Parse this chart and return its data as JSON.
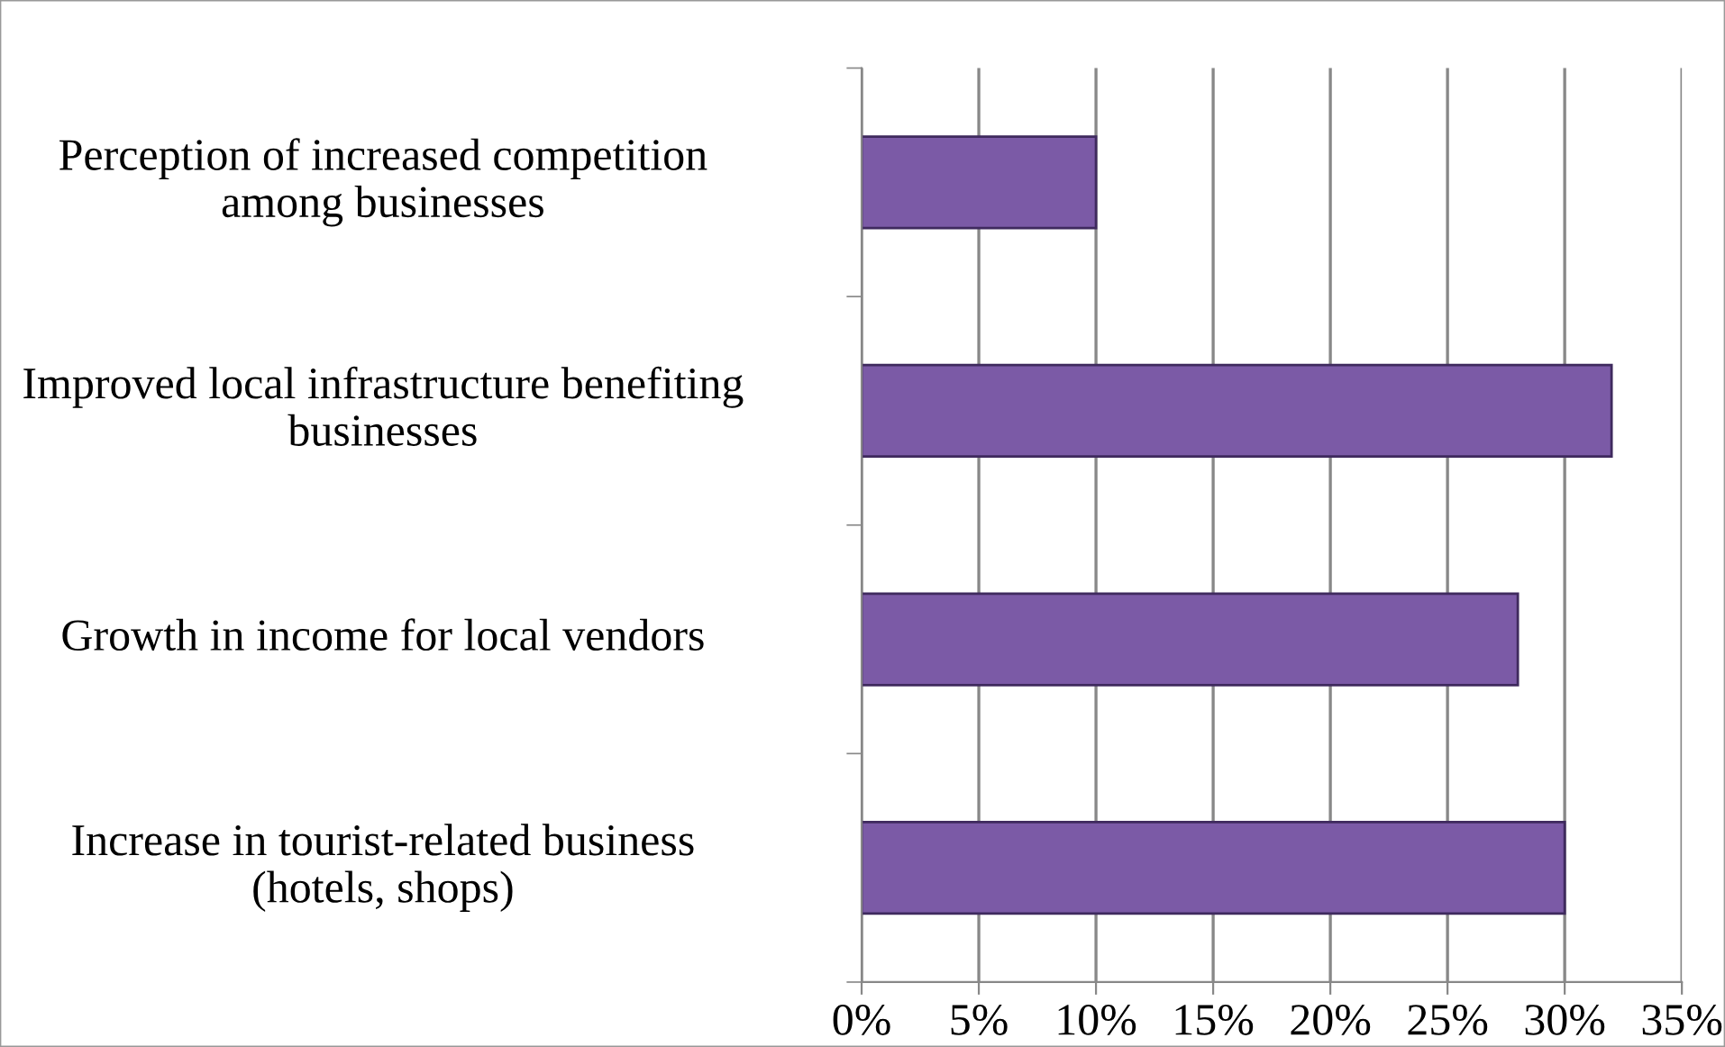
{
  "chart_data": {
    "type": "bar",
    "orientation": "horizontal",
    "categories": [
      "Perception of increased competition among businesses",
      "Improved local infrastructure benefiting businesses",
      "Growth in income for local vendors",
      "Increase in tourist-related business (hotels, shops)"
    ],
    "values": [
      10,
      32,
      28,
      30
    ],
    "color": "#7b5aa6",
    "xlim": [
      0,
      35
    ],
    "xticks": [
      {
        "value": 0,
        "label": "0%"
      },
      {
        "value": 5,
        "label": "5%"
      },
      {
        "value": 10,
        "label": "10%"
      },
      {
        "value": 15,
        "label": "15%"
      },
      {
        "value": 20,
        "label": "20%"
      },
      {
        "value": 25,
        "label": "25%"
      },
      {
        "value": 30,
        "label": "30%"
      },
      {
        "value": 35,
        "label": "35%"
      }
    ],
    "grid": "x"
  }
}
